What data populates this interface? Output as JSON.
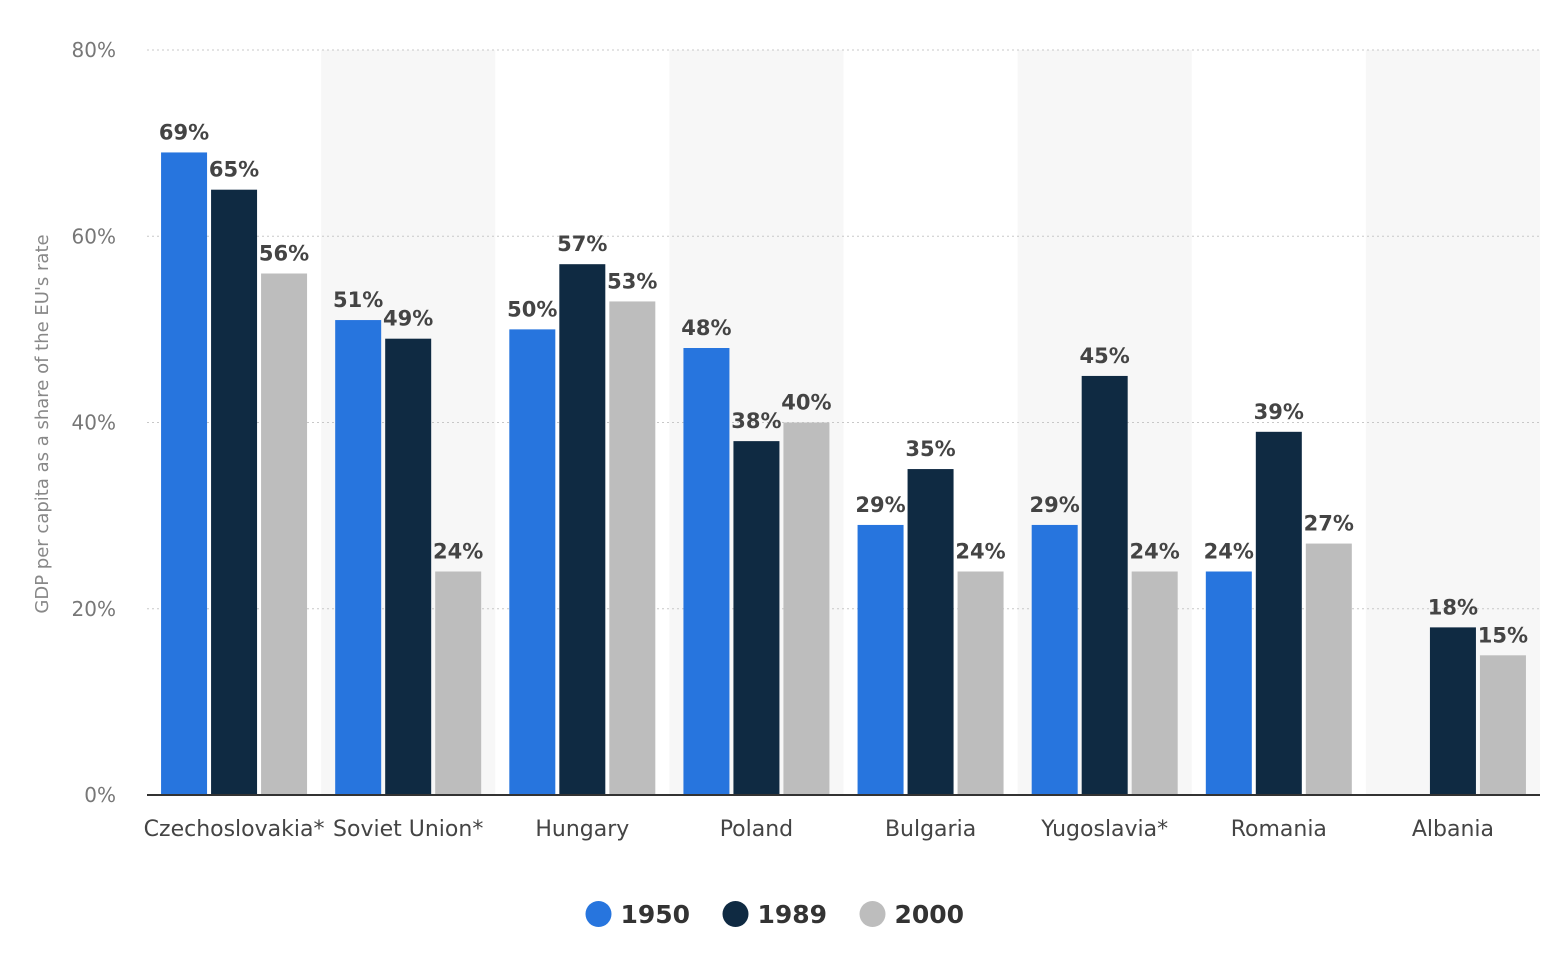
{
  "chart_data": {
    "type": "bar",
    "ylabel": "GDP per capita as a share of the EU's rate",
    "xlabel": "",
    "ylim": [
      0,
      80
    ],
    "yticks": [
      0,
      20,
      40,
      60,
      80
    ],
    "ytick_labels": [
      "0%",
      "20%",
      "40%",
      "60%",
      "80%"
    ],
    "value_suffix": "%",
    "grid": true,
    "legend_position": "bottom",
    "categories": [
      "Czechoslovakia*",
      "Soviet Union*",
      "Hungary",
      "Poland",
      "Bulgaria",
      "Yugoslavia*",
      "Romania",
      "Albania"
    ],
    "series": [
      {
        "name": "1950",
        "color": "#2775de",
        "values": [
          69,
          51,
          50,
          48,
          29,
          29,
          24,
          null
        ]
      },
      {
        "name": "1989",
        "color": "#0f2a42",
        "values": [
          65,
          49,
          57,
          38,
          35,
          45,
          39,
          18
        ]
      },
      {
        "name": "2000",
        "color": "#bdbdbd",
        "values": [
          56,
          24,
          53,
          40,
          24,
          24,
          27,
          15
        ]
      }
    ]
  }
}
